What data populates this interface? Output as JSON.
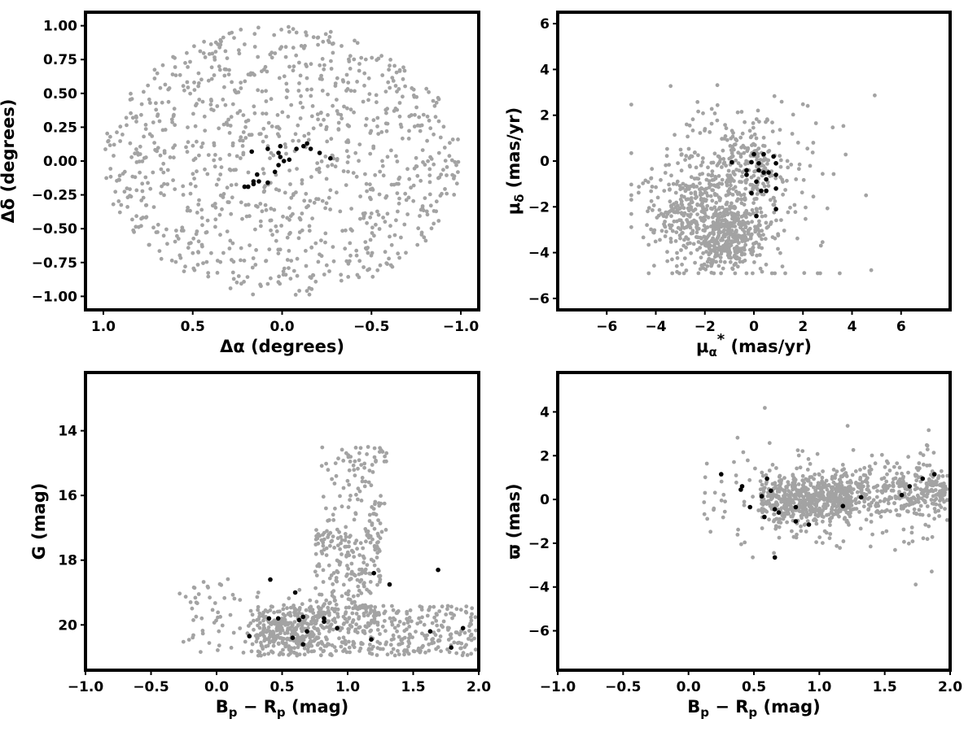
{
  "colors": {
    "field_points": "#a3a3a3",
    "member_points": "#000000",
    "frame": "#000000"
  },
  "chart_data": [
    {
      "type": "scatter",
      "title": "",
      "xlabel": "Δα (degrees)",
      "ylabel": "Δδ (degrees)",
      "xlim": [
        1.1,
        -1.1
      ],
      "ylim": [
        -1.1,
        1.1
      ],
      "x_reversed": true,
      "grid": false,
      "x_ticks": [
        1.0,
        0.5,
        0.0,
        -0.5,
        -1.0
      ],
      "x_tick_labels": [
        "1.0",
        "0.5",
        "0.0",
        "−0.5",
        "−1.0"
      ],
      "y_ticks": [
        1.0,
        0.75,
        0.5,
        0.25,
        0.0,
        -0.25,
        -0.5,
        -0.75,
        -1.0
      ],
      "y_tick_labels": [
        "1.00",
        "0.75",
        "0.50",
        "0.25",
        "0.00",
        "−0.25",
        "−0.50",
        "−0.75",
        "−1.00"
      ],
      "field_distribution": "~1000 grey stars filling an ellipse of radius 1 degree",
      "series": [
        {
          "role": "members",
          "x": [
            0.13,
            0.08,
            0.04,
            0.02,
            -0.01,
            -0.04,
            0.02,
            0.01,
            -0.08,
            -0.12,
            -0.14,
            -0.16,
            -0.21,
            -0.27,
            0.08,
            0.01,
            0.16,
            0.19,
            0.21,
            0.16,
            0.17,
            0.14
          ],
          "y": [
            -0.15,
            -0.16,
            -0.08,
            -0.03,
            0.0,
            0.01,
            0.06,
            0.11,
            0.09,
            0.11,
            0.13,
            0.09,
            0.06,
            0.02,
            0.09,
            0.03,
            -0.15,
            -0.19,
            -0.19,
            -0.17,
            0.07,
            -0.1
          ]
        }
      ]
    },
    {
      "type": "scatter",
      "title": "",
      "xlabel": "μα* (mas/yr)",
      "ylabel": "μδ (mas/yr)",
      "xlim": [
        -8,
        8
      ],
      "ylim": [
        -6.5,
        6.5
      ],
      "grid": false,
      "x_ticks": [
        -6,
        -4,
        -2,
        0,
        2,
        4,
        6
      ],
      "x_tick_labels": [
        "−6",
        "−4",
        "−2",
        "0",
        "2",
        "4",
        "6"
      ],
      "y_ticks": [
        6,
        4,
        2,
        0,
        -2,
        -4,
        -6
      ],
      "y_tick_labels": [
        "6",
        "4",
        "2",
        "0",
        "−2",
        "−4",
        "−6"
      ],
      "field_distribution": "~1000 grey stars spread from about (−5,2) to (5,−4), densest near (−1,−3)",
      "series": [
        {
          "role": "members",
          "x": [
            -0.9,
            -0.1,
            0.0,
            0.2,
            -0.3,
            0.2,
            0.4,
            0.8,
            0.9,
            0.6,
            0.9,
            0.4,
            0.1,
            0.3,
            -0.1,
            0.9,
            0.1,
            0.9,
            0.5,
            -0.3,
            0.5
          ],
          "y": [
            -0.05,
            -0.05,
            0.3,
            -0.4,
            -0.4,
            -0.1,
            0.3,
            0.2,
            -0.1,
            -0.5,
            -0.6,
            -0.5,
            -0.9,
            -1.3,
            -1.4,
            -1.2,
            -2.4,
            -2.1,
            -1.3,
            -0.6,
            -0.8
          ]
        }
      ]
    },
    {
      "type": "scatter",
      "title": "",
      "xlabel": "Bp − Rp (mag)",
      "ylabel": "G (mag)",
      "xlim": [
        -1.0,
        2.0
      ],
      "ylim": [
        21.4,
        12.2
      ],
      "y_reversed": true,
      "grid": false,
      "x_ticks": [
        -1.0,
        -0.5,
        0.0,
        0.5,
        1.0,
        1.5,
        2.0
      ],
      "x_tick_labels": [
        "−1.0",
        "−0.5",
        "0.0",
        "0.5",
        "1.0",
        "1.5",
        "2.0"
      ],
      "y_ticks": [
        20,
        18,
        16,
        14
      ],
      "y_tick_labels": [
        "20",
        "18",
        "16",
        "14"
      ],
      "field_distribution": "~1000 grey stars, dense band at G≈20–21 for Bp−Rp 0.3–2.0, tail to G≈12.5 near Bp−Rp 1.0–1.3",
      "series": [
        {
          "role": "members",
          "x": [
            0.25,
            0.4,
            0.47,
            0.58,
            0.6,
            0.63,
            0.66,
            0.66,
            0.69,
            0.82,
            0.82,
            0.92,
            1.18,
            1.2,
            1.32,
            1.63,
            1.69,
            1.79,
            1.88,
            0.41
          ],
          "y": [
            20.35,
            19.8,
            19.8,
            20.4,
            19.0,
            19.85,
            20.6,
            19.75,
            20.2,
            19.9,
            19.8,
            20.1,
            20.45,
            18.4,
            18.75,
            20.2,
            18.3,
            20.7,
            20.1,
            18.6
          ]
        }
      ]
    },
    {
      "type": "scatter",
      "title": "",
      "xlabel": "Bp − Rp (mag)",
      "ylabel": "ϖ (mas)",
      "xlim": [
        -1.0,
        2.0
      ],
      "ylim": [
        -7.8,
        5.8
      ],
      "grid": false,
      "x_ticks": [
        -1.0,
        -0.5,
        0.0,
        0.5,
        1.0,
        1.5,
        2.0
      ],
      "x_tick_labels": [
        "−1.0",
        "−0.5",
        "0.0",
        "0.5",
        "1.0",
        "1.5",
        "2.0"
      ],
      "y_ticks": [
        4,
        2,
        0,
        -2,
        -4,
        -6
      ],
      "y_tick_labels": [
        "4",
        "2",
        "0",
        "−2",
        "−4",
        "−6"
      ],
      "field_distribution": "~1000 grey stars clustered near ϖ≈0 across Bp−Rp 0.4–2.0, scatter up to ±5",
      "series": [
        {
          "role": "members",
          "x": [
            0.25,
            0.4,
            0.41,
            0.47,
            0.56,
            0.58,
            0.6,
            0.63,
            0.66,
            0.66,
            0.69,
            0.82,
            0.82,
            0.92,
            1.18,
            1.32,
            1.63,
            1.69,
            1.79,
            1.88
          ],
          "y": [
            1.15,
            0.45,
            0.6,
            -0.35,
            0.15,
            -0.8,
            0.95,
            0.4,
            -2.65,
            -0.45,
            -0.6,
            -0.35,
            -1.0,
            -1.15,
            -0.3,
            0.1,
            0.2,
            0.6,
            0.95,
            1.15
          ]
        }
      ]
    }
  ]
}
